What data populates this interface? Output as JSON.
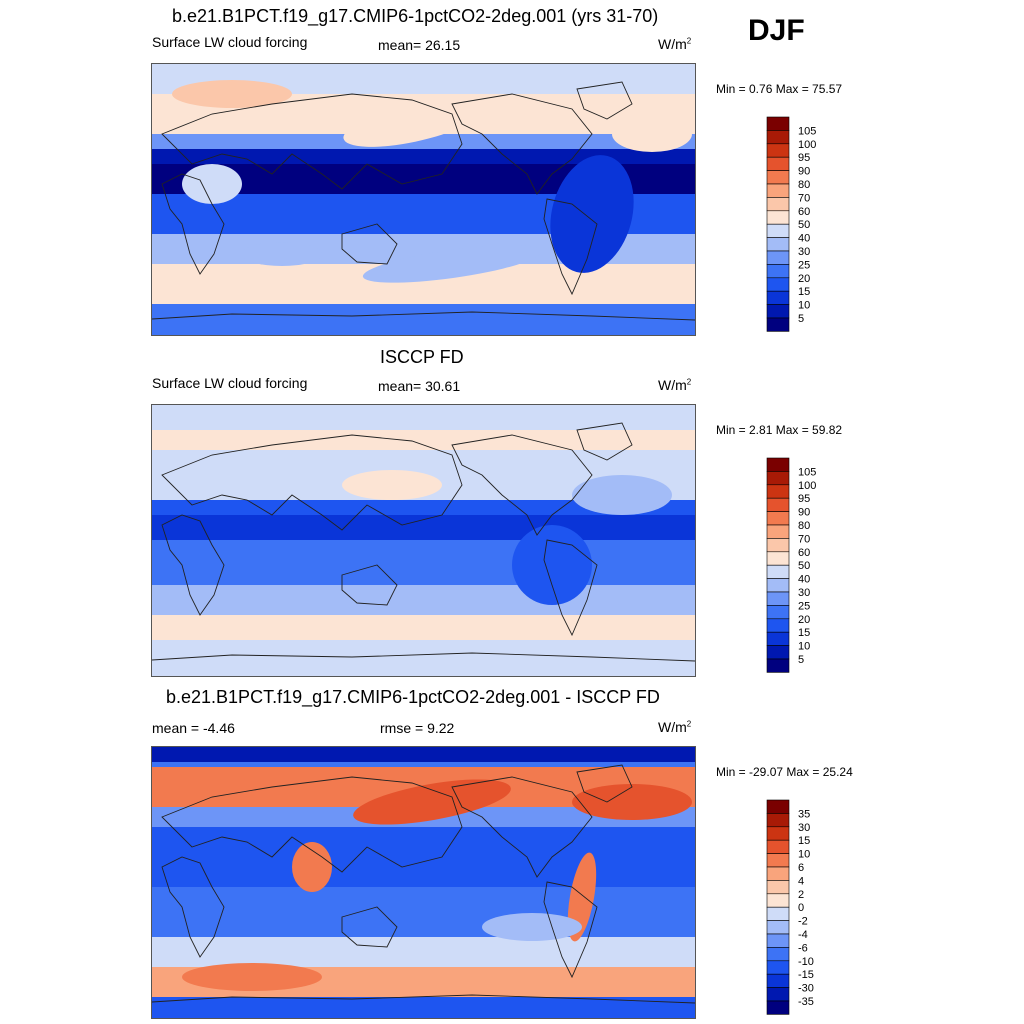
{
  "season_label": "DJF",
  "panels": [
    {
      "title": "b.e21.B1PCT.f19_g17.CMIP6-1pctCO2-2deg.001 (yrs 31-70)",
      "left_label": "Surface LW cloud forcing",
      "center_label": "mean=  26.15",
      "units": "W/m",
      "units_sup": "2",
      "minmax": "Min =   0.76 Max =  75.57"
    },
    {
      "title": "ISCCP FD",
      "left_label": "Surface LW cloud forcing",
      "center_label": "mean=  30.61",
      "units": "W/m",
      "units_sup": "2",
      "minmax": "Min =   2.81 Max =  59.82"
    },
    {
      "title": "b.e21.B1PCT.f19_g17.CMIP6-1pctCO2-2deg.001 - ISCCP FD",
      "left_label": "mean =  -4.46",
      "center_label": "rmse =   9.22",
      "units": "W/m",
      "units_sup": "2",
      "minmax": "Min = -29.07 Max =  25.24"
    }
  ],
  "chart_data": [
    {
      "type": "heatmap",
      "title": "b.e21.B1PCT.f19_g17.CMIP6-1pctCO2-2deg.001 (yrs 31-70)",
      "variable": "Surface LW cloud forcing",
      "units": "W/m2",
      "mean": 26.15,
      "min": 0.76,
      "max": 75.57,
      "colorbar_levels": [
        5,
        10,
        15,
        20,
        25,
        30,
        40,
        50,
        60,
        70,
        80,
        90,
        95,
        100,
        105
      ],
      "colorbar_colors": [
        "#00007f",
        "#0018b0",
        "#0a35d8",
        "#1e55f0",
        "#3d73f5",
        "#6d95f7",
        "#a3bcf7",
        "#cfdcf8",
        "#fce4d4",
        "#fbc7aa",
        "#f9a47c",
        "#f27a4f",
        "#e5532d",
        "#cc3412",
        "#a81a06",
        "#7a0000"
      ]
    },
    {
      "type": "heatmap",
      "title": "ISCCP FD",
      "variable": "Surface LW cloud forcing",
      "units": "W/m2",
      "mean": 30.61,
      "min": 2.81,
      "max": 59.82,
      "colorbar_levels": [
        5,
        10,
        15,
        20,
        25,
        30,
        40,
        50,
        60,
        70,
        80,
        90,
        95,
        100,
        105
      ],
      "colorbar_colors": [
        "#00007f",
        "#0018b0",
        "#0a35d8",
        "#1e55f0",
        "#3d73f5",
        "#6d95f7",
        "#a3bcf7",
        "#cfdcf8",
        "#fce4d4",
        "#fbc7aa",
        "#f9a47c",
        "#f27a4f",
        "#e5532d",
        "#cc3412",
        "#a81a06",
        "#7a0000"
      ]
    },
    {
      "type": "heatmap",
      "title": "b.e21.B1PCT.f19_g17.CMIP6-1pctCO2-2deg.001 - ISCCP FD",
      "units": "W/m2",
      "mean": -4.46,
      "rmse": 9.22,
      "min": -29.07,
      "max": 25.24,
      "colorbar_levels": [
        -35,
        -30,
        -15,
        -10,
        -6,
        -4,
        -2,
        0,
        2,
        4,
        6,
        10,
        15,
        30,
        35
      ],
      "colorbar_colors": [
        "#00007f",
        "#0018b0",
        "#0a35d8",
        "#1e55f0",
        "#3d73f5",
        "#6d95f7",
        "#a3bcf7",
        "#cfdcf8",
        "#fce4d4",
        "#fbc7aa",
        "#f9a47c",
        "#f27a4f",
        "#e5532d",
        "#cc3412",
        "#a81a06",
        "#7a0000"
      ]
    }
  ]
}
